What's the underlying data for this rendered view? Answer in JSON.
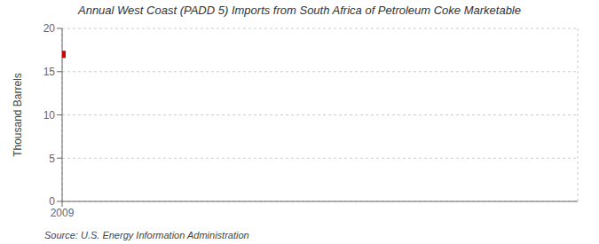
{
  "chart_data": {
    "type": "scatter",
    "title": "Annual West Coast (PADD 5) Imports from South Africa of Petroleum Coke Marketable",
    "ylabel": "Thousand Barrels",
    "annotations": [
      "Source: U.S. Energy Information Administration"
    ],
    "x": [
      2009
    ],
    "values": [
      17
    ],
    "color": "#cc0000",
    "marker": "square",
    "xlim": [
      2009,
      2014
    ],
    "xticks": [
      2009
    ],
    "ylim": [
      0,
      20
    ],
    "yticks": [
      0,
      5,
      10,
      15,
      20
    ],
    "grid": true
  }
}
